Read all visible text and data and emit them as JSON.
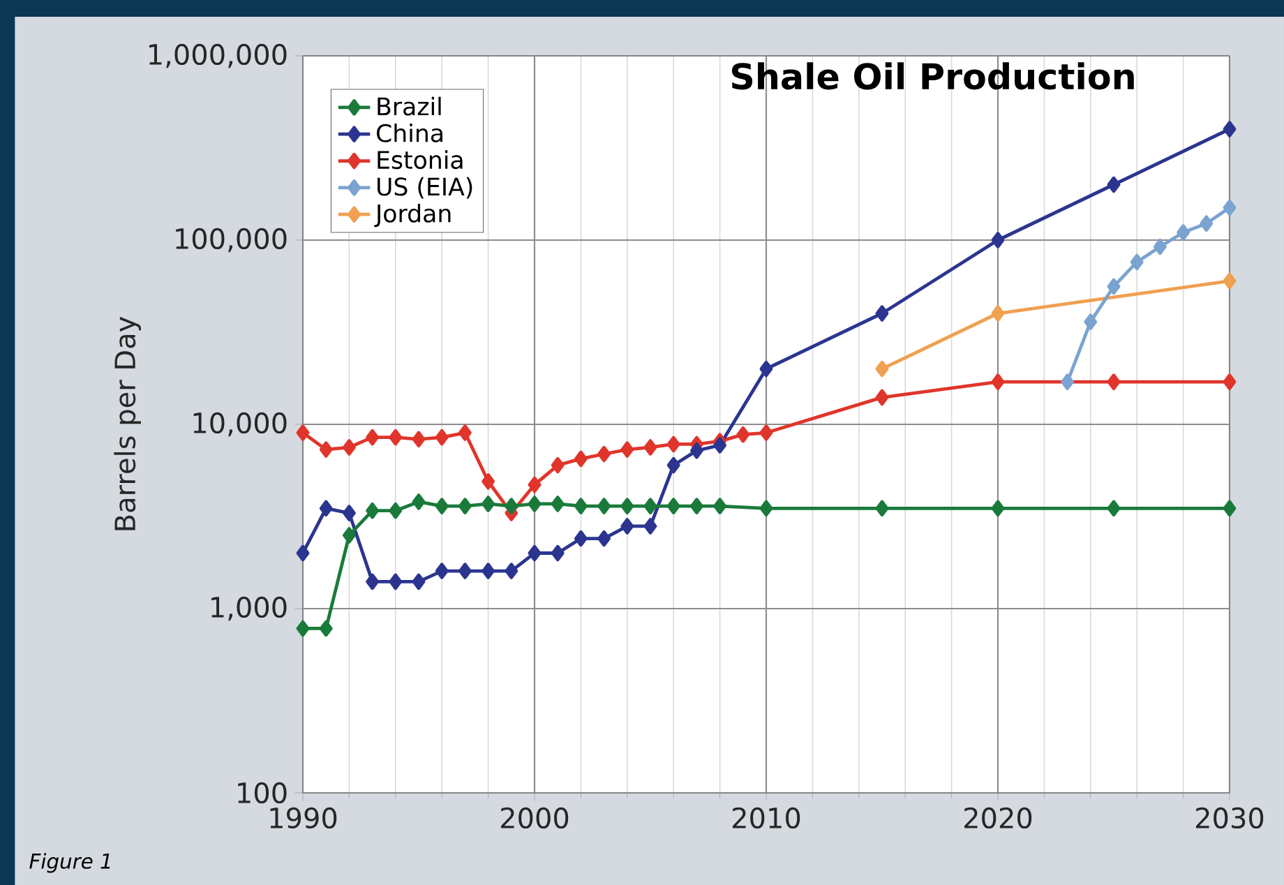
{
  "chart_data": {
    "type": "line",
    "title": "Shale Oil Production",
    "ylabel": "Barrels per Day",
    "annotations": [
      "Figure 1"
    ],
    "log": "y",
    "grid": true,
    "legend": "top left",
    "marker": "diamond",
    "line_style": "solid",
    "xlim": [
      1990,
      2030
    ],
    "xticks": [
      1990,
      2000,
      2010,
      2020,
      2030
    ],
    "ylim": [
      100,
      1000000
    ],
    "yticks": [
      {
        "value": 100,
        "label": "100"
      },
      {
        "value": 1000,
        "label": "1,000"
      },
      {
        "value": 10000,
        "label": "10,000"
      },
      {
        "value": 100000,
        "label": "100,000"
      },
      {
        "value": 1000000,
        "label": "1,000,000"
      }
    ],
    "series": [
      {
        "name": "Brazil",
        "color": "#1a7a3a",
        "x": [
          1990,
          1991,
          1992,
          1993,
          1994,
          1995,
          1996,
          1997,
          1998,
          1999,
          2000,
          2001,
          2002,
          2003,
          2004,
          2005,
          2006,
          2007,
          2008,
          2010,
          2015,
          2020,
          2025,
          2030
        ],
        "values": [
          780,
          780,
          2500,
          3400,
          3400,
          3800,
          3600,
          3600,
          3700,
          3600,
          3700,
          3700,
          3600,
          3600,
          3600,
          3600,
          3600,
          3600,
          3600,
          3500,
          3500,
          3500,
          3500,
          3500
        ]
      },
      {
        "name": "China",
        "color": "#2b3590",
        "x": [
          1990,
          1991,
          1992,
          1993,
          1994,
          1995,
          1996,
          1997,
          1998,
          1999,
          2000,
          2001,
          2002,
          2003,
          2004,
          2005,
          2006,
          2007,
          2008,
          2010,
          2015,
          2020,
          2025,
          2030
        ],
        "values": [
          2000,
          3500,
          3300,
          1400,
          1400,
          1400,
          1600,
          1600,
          1600,
          1600,
          2000,
          2000,
          2400,
          2400,
          2800,
          2800,
          6000,
          7200,
          7700,
          20000,
          40000,
          100000,
          200000,
          400000
        ]
      },
      {
        "name": "Estonia",
        "color": "#e0352b",
        "x": [
          1990,
          1991,
          1992,
          1993,
          1994,
          1995,
          1996,
          1997,
          1998,
          1999,
          2000,
          2001,
          2002,
          2003,
          2004,
          2005,
          2006,
          2007,
          2008,
          2009,
          2010,
          2015,
          2020,
          2025,
          2030
        ],
        "values": [
          9000,
          7300,
          7500,
          8500,
          8500,
          8300,
          8500,
          9000,
          4900,
          3300,
          4700,
          6000,
          6500,
          6900,
          7300,
          7500,
          7800,
          7800,
          8100,
          8800,
          9000,
          14000,
          17000,
          17000,
          17000
        ]
      },
      {
        "name": "US (EIA)",
        "color": "#7ba3d0",
        "x": [
          2023,
          2024,
          2025,
          2026,
          2027,
          2028,
          2029,
          2030
        ],
        "values": [
          17000,
          36000,
          56000,
          76000,
          92000,
          110000,
          123000,
          150000
        ]
      },
      {
        "name": "Jordan",
        "color": "#f0a050",
        "x": [
          2015,
          2020,
          2030
        ],
        "values": [
          20000,
          40000,
          60000
        ]
      }
    ]
  }
}
